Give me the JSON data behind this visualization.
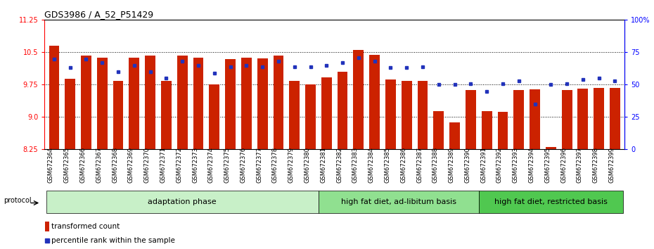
{
  "title": "GDS3986 / A_52_P51429",
  "samples": [
    "GSM672364",
    "GSM672365",
    "GSM672366",
    "GSM672367",
    "GSM672368",
    "GSM672369",
    "GSM672370",
    "GSM672371",
    "GSM672372",
    "GSM672373",
    "GSM672374",
    "GSM672375",
    "GSM672376",
    "GSM672377",
    "GSM672378",
    "GSM672379",
    "GSM672380",
    "GSM672381",
    "GSM672382",
    "GSM672383",
    "GSM672384",
    "GSM672385",
    "GSM672386",
    "GSM672387",
    "GSM672388",
    "GSM672389",
    "GSM672390",
    "GSM672391",
    "GSM672392",
    "GSM672393",
    "GSM672394",
    "GSM672395",
    "GSM672396",
    "GSM672397",
    "GSM672398",
    "GSM672399"
  ],
  "bar_values": [
    10.65,
    9.88,
    10.42,
    10.38,
    9.83,
    10.37,
    10.42,
    9.84,
    10.43,
    10.37,
    9.75,
    10.35,
    10.38,
    10.36,
    10.43,
    9.83,
    9.75,
    9.92,
    10.05,
    10.56,
    10.44,
    9.87,
    9.84,
    9.84,
    9.13,
    8.88,
    9.62,
    9.13,
    9.12,
    9.62,
    9.64,
    8.3,
    9.62,
    9.65,
    9.68,
    9.68
  ],
  "percentile_values": [
    70,
    63,
    70,
    67,
    60,
    65,
    60,
    55,
    68,
    65,
    59,
    64,
    65,
    64,
    68,
    64,
    64,
    65,
    67,
    71,
    68,
    63,
    63,
    64,
    50,
    50,
    51,
    45,
    51,
    53,
    35,
    50,
    51,
    54,
    55,
    53
  ],
  "groups": [
    {
      "label": "adaptation phase",
      "start": 0,
      "end": 17,
      "color": "#c8f0c8"
    },
    {
      "label": "high fat diet, ad-libitum basis",
      "start": 17,
      "end": 27,
      "color": "#90e090"
    },
    {
      "label": "high fat diet, restricted basis",
      "start": 27,
      "end": 36,
      "color": "#50c850"
    }
  ],
  "ylim_left": [
    8.25,
    11.25
  ],
  "ylim_right": [
    0,
    100
  ],
  "yticks_left": [
    8.25,
    9.0,
    9.75,
    10.5,
    11.25
  ],
  "yticks_right": [
    0,
    25,
    50,
    75,
    100
  ],
  "ytick_labels_right": [
    "0",
    "25",
    "50",
    "75",
    "100%"
  ],
  "bar_color": "#cc2200",
  "dot_color": "#2233bb",
  "bar_width": 0.65,
  "bar_bottom": 8.25,
  "protocol_label": "protocol",
  "legend_bar_label": "transformed count",
  "legend_dot_label": "percentile rank within the sample",
  "title_fontsize": 9,
  "tick_fontsize": 7,
  "group_label_fontsize": 8
}
